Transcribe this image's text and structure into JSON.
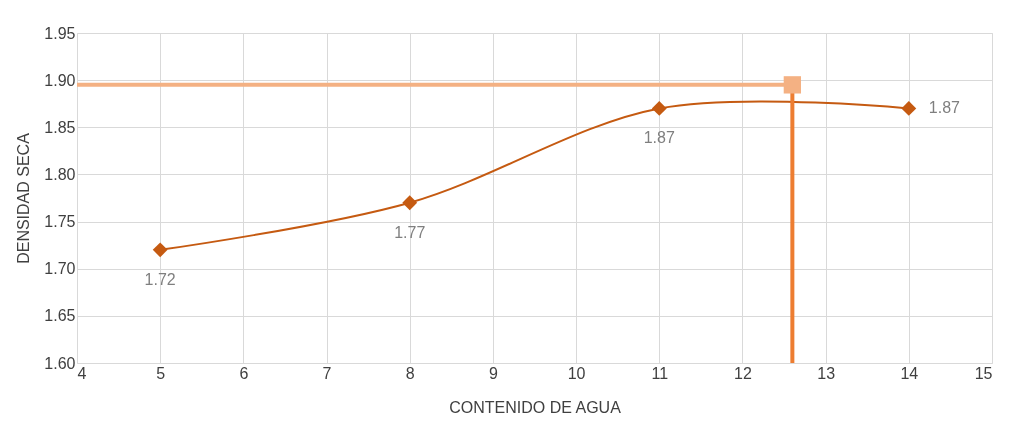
{
  "chart_data": {
    "type": "line",
    "xlabel": "CONTENIDO DE AGUA",
    "ylabel": "DENSIDAD SECA",
    "xlim": [
      4,
      15
    ],
    "xticks": [
      4,
      5,
      6,
      7,
      8,
      9,
      10,
      11,
      12,
      13,
      14,
      15
    ],
    "ylim": [
      1.6,
      1.95
    ],
    "yticks": [
      {
        "value": 1.6,
        "label": "1.60"
      },
      {
        "value": 1.65,
        "label": "1.65"
      },
      {
        "value": 1.7,
        "label": "1.70"
      },
      {
        "value": 1.75,
        "label": "1.75"
      },
      {
        "value": 1.8,
        "label": "1.80"
      },
      {
        "value": 1.85,
        "label": "1.85"
      },
      {
        "value": 1.9,
        "label": "1.90"
      },
      {
        "value": 1.95,
        "label": "1.95"
      }
    ],
    "grid": true,
    "series": [
      {
        "color": "#c55a11",
        "marker": "diamond",
        "x": [
          5,
          8,
          11,
          14
        ],
        "values": [
          1.72,
          1.77,
          1.87,
          1.87
        ],
        "value_labels": [
          "1.72",
          "1.77",
          "1.87",
          "1.87"
        ]
      },
      {
        "color": "#f4b183",
        "marker": "none",
        "x": [
          4,
          12.6
        ],
        "values": [
          1.895,
          1.895
        ]
      },
      {
        "color": "#ed7d31",
        "marker": "none",
        "x": [
          12.6,
          12.6
        ],
        "values": [
          1.6,
          1.895
        ]
      },
      {
        "type": "scatter",
        "color": "#f4b183",
        "marker": "square",
        "x": [
          12.6
        ],
        "values": [
          1.895
        ]
      }
    ]
  }
}
